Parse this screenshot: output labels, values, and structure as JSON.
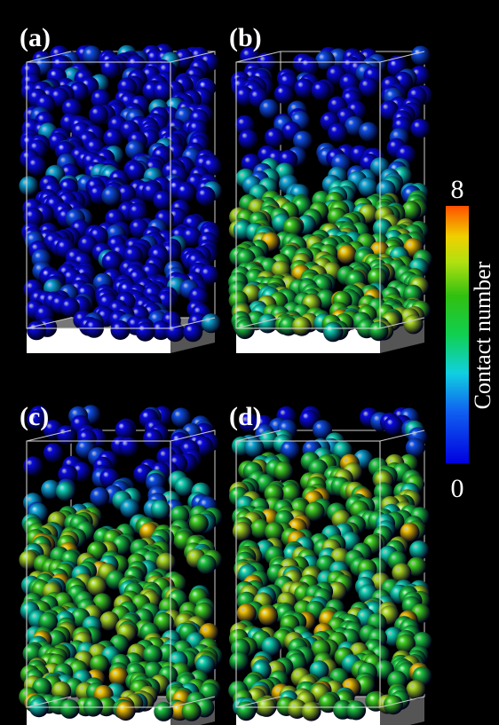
{
  "panels": [
    {
      "label": "(a)"
    },
    {
      "label": "(b)"
    },
    {
      "label": "(c)"
    },
    {
      "label": "(d)"
    }
  ],
  "colorbar": {
    "title": "Contact number",
    "max": 8,
    "min": 0
  }
}
